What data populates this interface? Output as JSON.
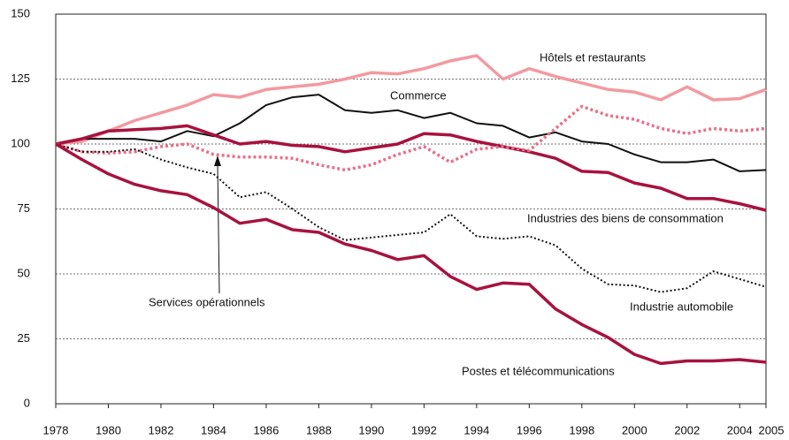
{
  "chart_data": {
    "type": "line",
    "x": [
      1978,
      1979,
      1980,
      1981,
      1982,
      1983,
      1984,
      1985,
      1986,
      1987,
      1988,
      1989,
      1990,
      1991,
      1992,
      1993,
      1994,
      1995,
      1996,
      1997,
      1998,
      1999,
      2000,
      2001,
      2002,
      2003,
      2004,
      2005
    ],
    "xlim": [
      1978,
      2005
    ],
    "xticks": [
      1978,
      1980,
      1982,
      1984,
      1986,
      1988,
      1990,
      1992,
      1994,
      1996,
      1998,
      2000,
      2002,
      2004,
      2005
    ],
    "ylim": [
      0,
      150
    ],
    "yticks": [
      0,
      25,
      50,
      75,
      100,
      125,
      150
    ],
    "grid": true,
    "series": [
      {
        "name": "Hôtels et restaurants",
        "color": "#f29aa0",
        "style": "solid",
        "values": [
          100,
          101,
          105,
          109,
          112,
          115,
          119,
          118,
          121,
          122,
          123,
          125,
          127.5,
          127,
          129,
          132,
          134,
          125,
          129,
          126,
          123.5,
          121,
          120,
          117,
          122,
          117,
          117.5,
          121
        ]
      },
      {
        "name": "Commerce",
        "color": "#111111",
        "style": "solid",
        "values": [
          100,
          102,
          102,
          102,
          101,
          105,
          103,
          108,
          115,
          118,
          119,
          113,
          112,
          113,
          110,
          112,
          108,
          107,
          102.5,
          104.5,
          101,
          100,
          96,
          93,
          93,
          94,
          89.5,
          90
        ]
      },
      {
        "name": "Industries des biens de consommation",
        "color": "#a8123e",
        "style": "solid",
        "values": [
          100,
          102,
          105,
          105.5,
          106,
          107,
          103.5,
          100,
          101,
          99.5,
          99,
          97,
          98.5,
          100,
          104,
          103.5,
          101,
          99,
          97,
          94.5,
          89.5,
          89,
          85,
          83,
          79,
          79,
          77,
          74.5
        ]
      },
      {
        "name": "Services opérationnels",
        "color": "#e8708a",
        "style": "dotted",
        "values": [
          100,
          97,
          96.5,
          97,
          99,
          100,
          96,
          95,
          95,
          94.5,
          92,
          90,
          92,
          96,
          99,
          93,
          98,
          99,
          97.5,
          106,
          114.5,
          111,
          109.5,
          106,
          104,
          106,
          105,
          106
        ]
      },
      {
        "name": "Industrie automobile",
        "color": "#111111",
        "style": "dotted",
        "values": [
          100,
          97,
          97,
          98,
          94,
          91,
          88.5,
          79.5,
          81.5,
          75,
          68,
          63,
          64,
          65,
          66,
          73,
          64.5,
          63.5,
          64.5,
          61,
          52,
          46,
          45.5,
          43,
          44.5,
          51,
          48,
          45
        ]
      },
      {
        "name": "Postes et télécommunications",
        "color": "#a8123e",
        "style": "solid",
        "values": [
          100,
          94,
          88.5,
          84.5,
          82,
          80.5,
          75.5,
          69.5,
          71,
          67,
          66,
          61.5,
          59,
          55.5,
          57,
          49,
          44,
          46.5,
          46,
          36.5,
          30.5,
          25.5,
          19,
          15.5,
          16.5,
          16.5,
          17,
          16
        ]
      }
    ]
  }
}
